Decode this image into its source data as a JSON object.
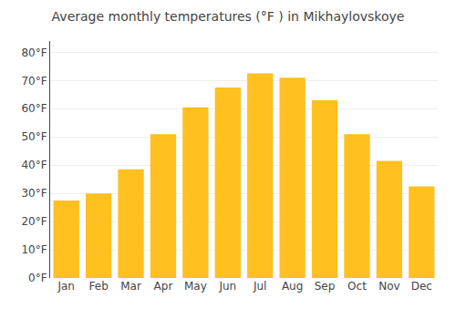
{
  "chart_data": {
    "type": "bar",
    "title": "Average monthly temperatures (°F ) in Mikhaylovskoye",
    "categories": [
      "Jan",
      "Feb",
      "Mar",
      "Apr",
      "May",
      "Jun",
      "Jul",
      "Aug",
      "Sep",
      "Oct",
      "Nov",
      "Dec"
    ],
    "values": [
      27.5,
      30.0,
      38.5,
      51.0,
      60.5,
      67.5,
      72.5,
      71.0,
      63.0,
      51.0,
      41.5,
      32.5
    ],
    "color": "#FFC020",
    "ylim": [
      0,
      84
    ],
    "yticks": [
      {
        "value": 0,
        "label": "0°F"
      },
      {
        "value": 10,
        "label": "10°F"
      },
      {
        "value": 20,
        "label": "20°F"
      },
      {
        "value": 30,
        "label": "30°F"
      },
      {
        "value": 40,
        "label": "40°F"
      },
      {
        "value": 50,
        "label": "50°F"
      },
      {
        "value": 60,
        "label": "60°F"
      },
      {
        "value": 70,
        "label": "70°F"
      },
      {
        "value": 80,
        "label": "80°F"
      }
    ],
    "grid": true
  }
}
